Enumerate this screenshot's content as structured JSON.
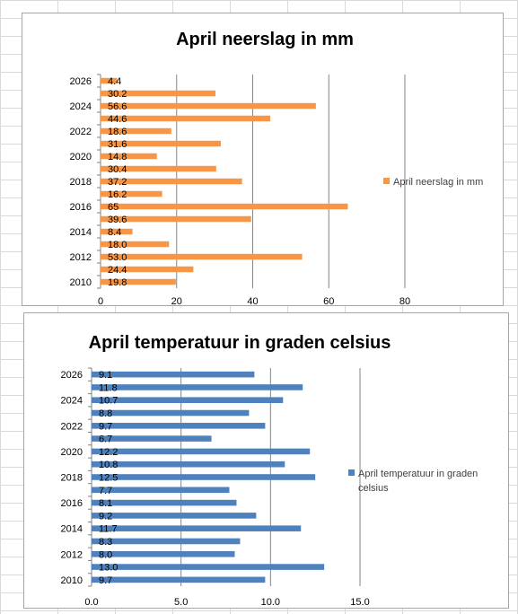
{
  "chart_data": [
    {
      "type": "bar",
      "orientation": "horizontal",
      "title": "April neerslag in mm",
      "categories": [
        "2010",
        "2011",
        "2012",
        "2013",
        "2014",
        "2015",
        "2016",
        "2017",
        "2018",
        "2019",
        "2020",
        "2021",
        "2022",
        "2023",
        "2024",
        "2025",
        "2026"
      ],
      "category_labels_shown": [
        "2010",
        "2012",
        "2014",
        "2016",
        "2018",
        "2020",
        "2022",
        "2024",
        "2026"
      ],
      "values": [
        19.8,
        24.4,
        53.0,
        18.0,
        8.4,
        39.6,
        65,
        16.2,
        37.2,
        30.4,
        14.8,
        31.6,
        18.6,
        44.6,
        56.6,
        30.2,
        4.4
      ],
      "data_labels": [
        "19.8",
        "24.4",
        "53.0",
        "18.0",
        "8.4",
        "39.6",
        "65",
        "16.2",
        "37.2",
        "30.4",
        "14.8",
        "31.6",
        "18.6",
        "44.6",
        "56.6",
        "30.2",
        "4.4"
      ],
      "series": [
        {
          "name": "April neerslag in mm",
          "color": "#f79646"
        }
      ],
      "xlim": [
        0,
        80
      ],
      "xticks": [
        0,
        20,
        40,
        60,
        80
      ],
      "xtick_labels": [
        "0",
        "20",
        "40",
        "60",
        "80"
      ],
      "grid": "vertical",
      "legend": "right"
    },
    {
      "type": "bar",
      "orientation": "horizontal",
      "title": "April temperatuur in graden celsius",
      "categories": [
        "2010",
        "2011",
        "2012",
        "2013",
        "2014",
        "2015",
        "2016",
        "2017",
        "2018",
        "2019",
        "2020",
        "2021",
        "2022",
        "2023",
        "2024",
        "2025",
        "2026"
      ],
      "category_labels_shown": [
        "2010",
        "2012",
        "2014",
        "2016",
        "2018",
        "2020",
        "2022",
        "2024",
        "2026"
      ],
      "values": [
        9.7,
        13.0,
        8.0,
        8.3,
        11.7,
        9.2,
        8.1,
        7.7,
        12.5,
        10.8,
        12.2,
        6.7,
        9.7,
        8.8,
        10.7,
        11.8,
        9.1
      ],
      "data_labels": [
        "9.7",
        "13.0",
        "8.0",
        "8.3",
        "11.7",
        "9.2",
        "8.1",
        "7.7",
        "12.5",
        "10.8",
        "12.2",
        "6.7",
        "9.7",
        "8.8",
        "10.7",
        "11.8",
        "9.1"
      ],
      "series": [
        {
          "name": "April temperatuur in graden celsius",
          "legend_lines": [
            "April temperatuur in graden",
            "celsius"
          ],
          "color": "#4f81bd"
        }
      ],
      "xlim": [
        0,
        15
      ],
      "xticks": [
        0,
        5,
        10,
        15
      ],
      "xtick_labels": [
        "0.0",
        "5.0",
        "10.0",
        "15.0"
      ],
      "grid": "vertical",
      "legend": "right"
    }
  ]
}
